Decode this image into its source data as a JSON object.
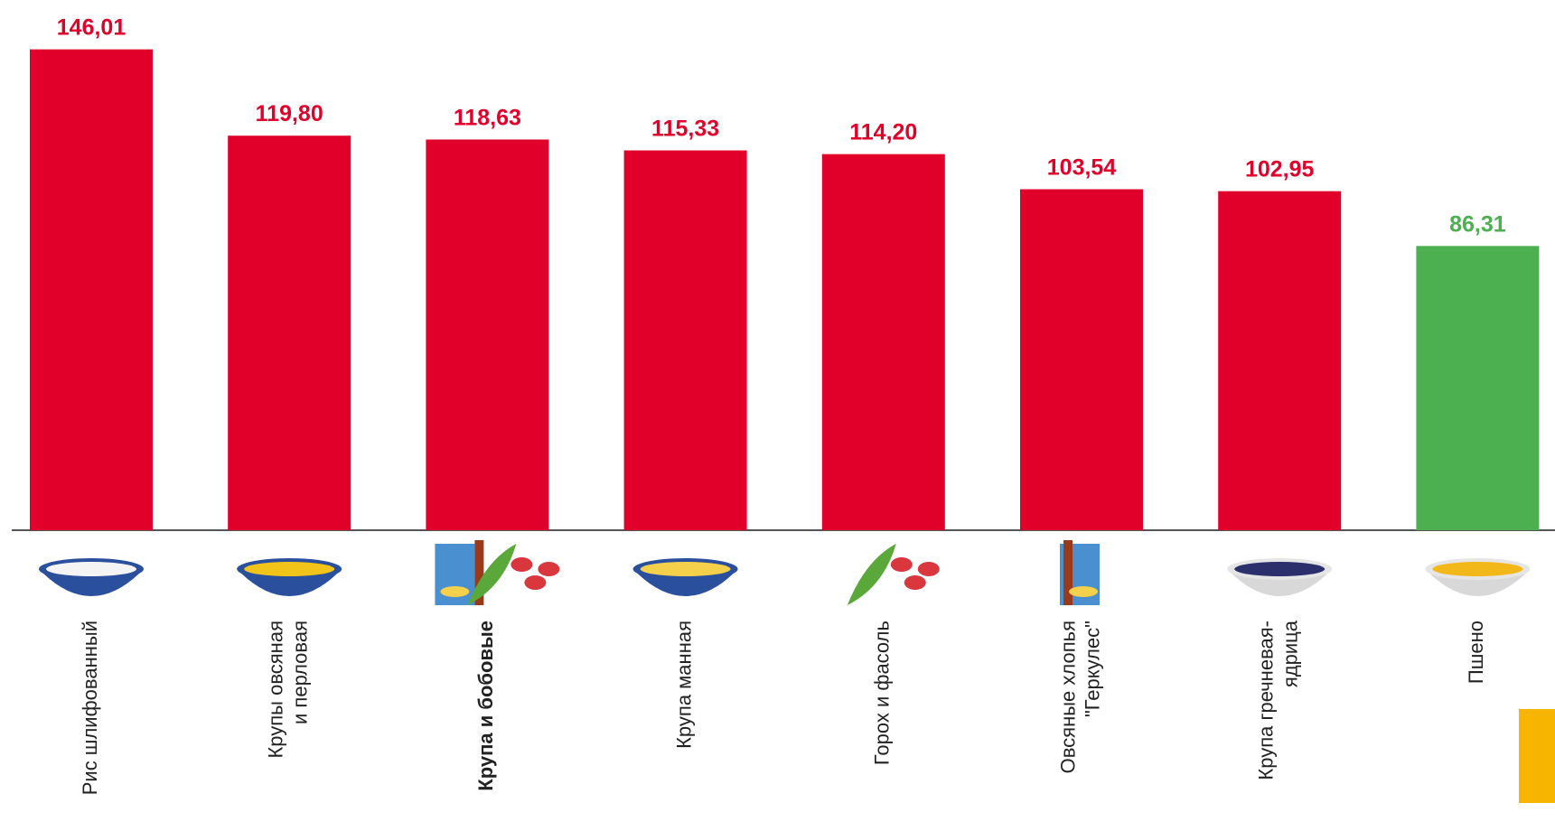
{
  "chart_data": {
    "type": "bar",
    "categories": [
      [
        "Рис шлифованный"
      ],
      [
        "Крупы овсяная",
        "и перловая"
      ],
      [
        "Крупа и бобовые"
      ],
      [
        "Крупа манная"
      ],
      [
        "Горох и фасоль"
      ],
      [
        "Овсяные хлопья",
        "\"Геркулес\""
      ],
      [
        "Крупа гречневая-",
        "ядрица"
      ],
      [
        "Пшено"
      ]
    ],
    "values": [
      146.01,
      119.8,
      118.63,
      115.33,
      114.2,
      103.54,
      102.95,
      86.31
    ],
    "value_labels": [
      "146,01",
      "119,80",
      "118,63",
      "115,33",
      "114,20",
      "103,54",
      "102,95",
      "86,31"
    ],
    "colors": [
      "#e0002a",
      "#e0002a",
      "#e0002a",
      "#e0002a",
      "#e0002a",
      "#e0002a",
      "#e0002a",
      "#4caf50"
    ],
    "bold_category": 2,
    "ylim": [
      0,
      161
    ]
  }
}
